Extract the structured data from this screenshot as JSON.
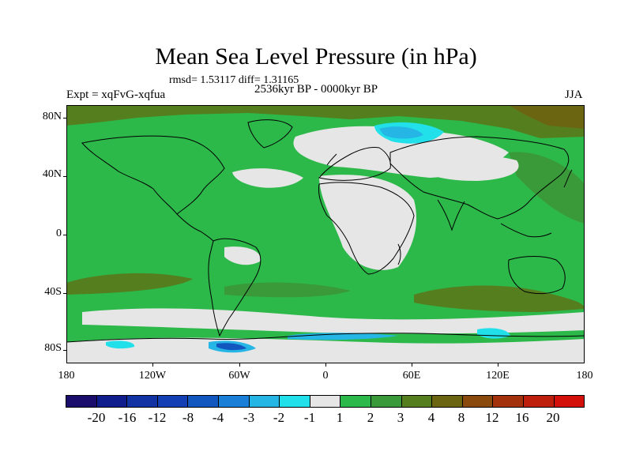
{
  "header": {
    "title": "Mean Sea Level Pressure (in hPa)",
    "stats": "rmsd= 1.53117 diff= 1.31165",
    "experiment": "Expt = xqFvG-xqfua",
    "period": "2536kyr BP - 0000kyr BP",
    "season": "JJA"
  },
  "axes": {
    "lat_labels": [
      "80N",
      "40N",
      "0",
      "40S",
      "80S"
    ],
    "lon_labels": [
      "180",
      "120W",
      "60W",
      "0",
      "60E",
      "120E",
      "180"
    ]
  },
  "colorbar": {
    "labels": [
      "-20",
      "-16",
      "-12",
      "-8",
      "-4",
      "-3",
      "-2",
      "-1",
      "1",
      "2",
      "3",
      "4",
      "8",
      "12",
      "16",
      "20"
    ],
    "colors": [
      "#1a0d6b",
      "#0f1e8c",
      "#1233a3",
      "#123fb3",
      "#1257c0",
      "#1a7fd6",
      "#26b6e6",
      "#22e0ea",
      "#e6e6e6",
      "#2db84a",
      "#3a9a3a",
      "#557e1f",
      "#6b6512",
      "#8a4a0e",
      "#a3320c",
      "#bd1f0c",
      "#d4100a"
    ]
  },
  "map_colors": {
    "ocean_base": "#2db84a",
    "neutral": "#e6e6e6",
    "mid_green": "#3a9a3a",
    "olive": "#557e1f",
    "brown": "#6b6512",
    "cyan": "#22e0ea",
    "light_blue": "#26b6e6",
    "blue": "#1257c0",
    "coast": "#000000"
  }
}
